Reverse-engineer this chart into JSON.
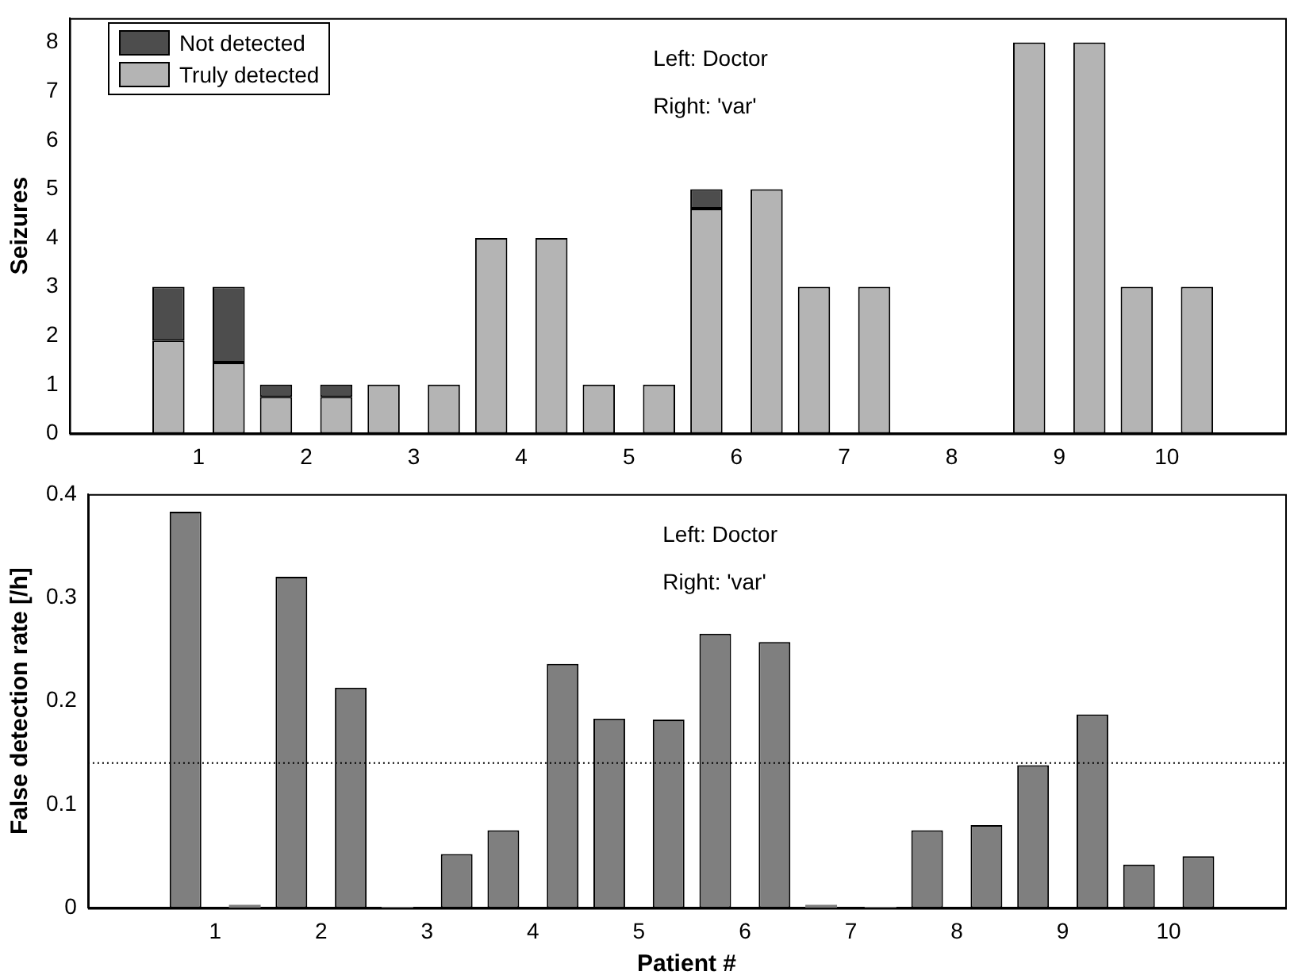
{
  "chart_data": [
    {
      "type": "bar",
      "stacked": true,
      "ylabel": "Seizures",
      "xlim": [
        -0.2,
        11.1
      ],
      "xticks": [
        1,
        2,
        3,
        4,
        5,
        6,
        7,
        8,
        9,
        10
      ],
      "ylim": [
        0,
        8.5
      ],
      "yticks": [
        0,
        1,
        2,
        3,
        4,
        5,
        6,
        7,
        8
      ],
      "legend": "top left",
      "annotations": [
        "Left: Doctor",
        "Right: 'var'"
      ],
      "series": [
        {
          "name": "Truly detected",
          "color": "#b4b4b4",
          "x": [
            0.72,
            1.28,
            1.72,
            2.28,
            2.72,
            3.28,
            3.72,
            4.28,
            4.72,
            5.28,
            5.72,
            6.28,
            6.72,
            7.28,
            7.72,
            8.28,
            8.72,
            9.28,
            9.72,
            10.28
          ],
          "values": [
            1.9,
            1.45,
            0.75,
            0.75,
            1,
            1,
            4,
            4,
            1,
            1,
            4.6,
            5,
            3,
            3,
            0,
            0,
            8,
            8,
            3,
            3
          ]
        },
        {
          "name": "Not detected",
          "color": "#4d4d4d",
          "x": [
            0.72,
            1.28,
            1.72,
            2.28,
            2.72,
            3.28,
            3.72,
            4.28,
            4.72,
            5.28,
            5.72,
            6.28,
            6.72,
            7.28,
            7.72,
            8.28,
            8.72,
            9.28,
            9.72,
            10.28
          ],
          "values": [
            1.1,
            1.55,
            0.25,
            0.25,
            0,
            0,
            0,
            0,
            0,
            0,
            0.4,
            0,
            0,
            0,
            0,
            0,
            0,
            0,
            0,
            0
          ]
        }
      ]
    },
    {
      "type": "bar",
      "ylabel": "False detection rate [/h]",
      "xlabel": "Patient #",
      "xlim": [
        -0.2,
        11.1
      ],
      "xticks": [
        1,
        2,
        3,
        4,
        5,
        6,
        7,
        8,
        9,
        10
      ],
      "ylim": [
        0,
        0.4
      ],
      "yticks": [
        0,
        0.1,
        0.2,
        0.3,
        0.4
      ],
      "annotations": [
        "Left: Doctor",
        "Right: 'var'"
      ],
      "ref_lines": [
        {
          "axis": "y",
          "value": 0.14,
          "line_style": "dotted",
          "color": "#000000"
        }
      ],
      "series": [
        {
          "color": "#7f7f7f",
          "x": [
            0.72,
            1.28,
            1.72,
            2.28,
            2.72,
            3.28,
            3.72,
            4.28,
            4.72,
            5.28,
            5.72,
            6.28,
            6.72,
            7.28,
            7.72,
            8.28,
            8.72,
            9.28,
            9.72,
            10.28
          ],
          "values": [
            0.383,
            0.003,
            0.32,
            0.213,
            0.001,
            0.052,
            0.075,
            0.236,
            0.183,
            0.182,
            0.265,
            0.257,
            0.003,
            0.001,
            0.075,
            0.08,
            0.138,
            0.187,
            0.042,
            0.05
          ]
        }
      ]
    }
  ]
}
